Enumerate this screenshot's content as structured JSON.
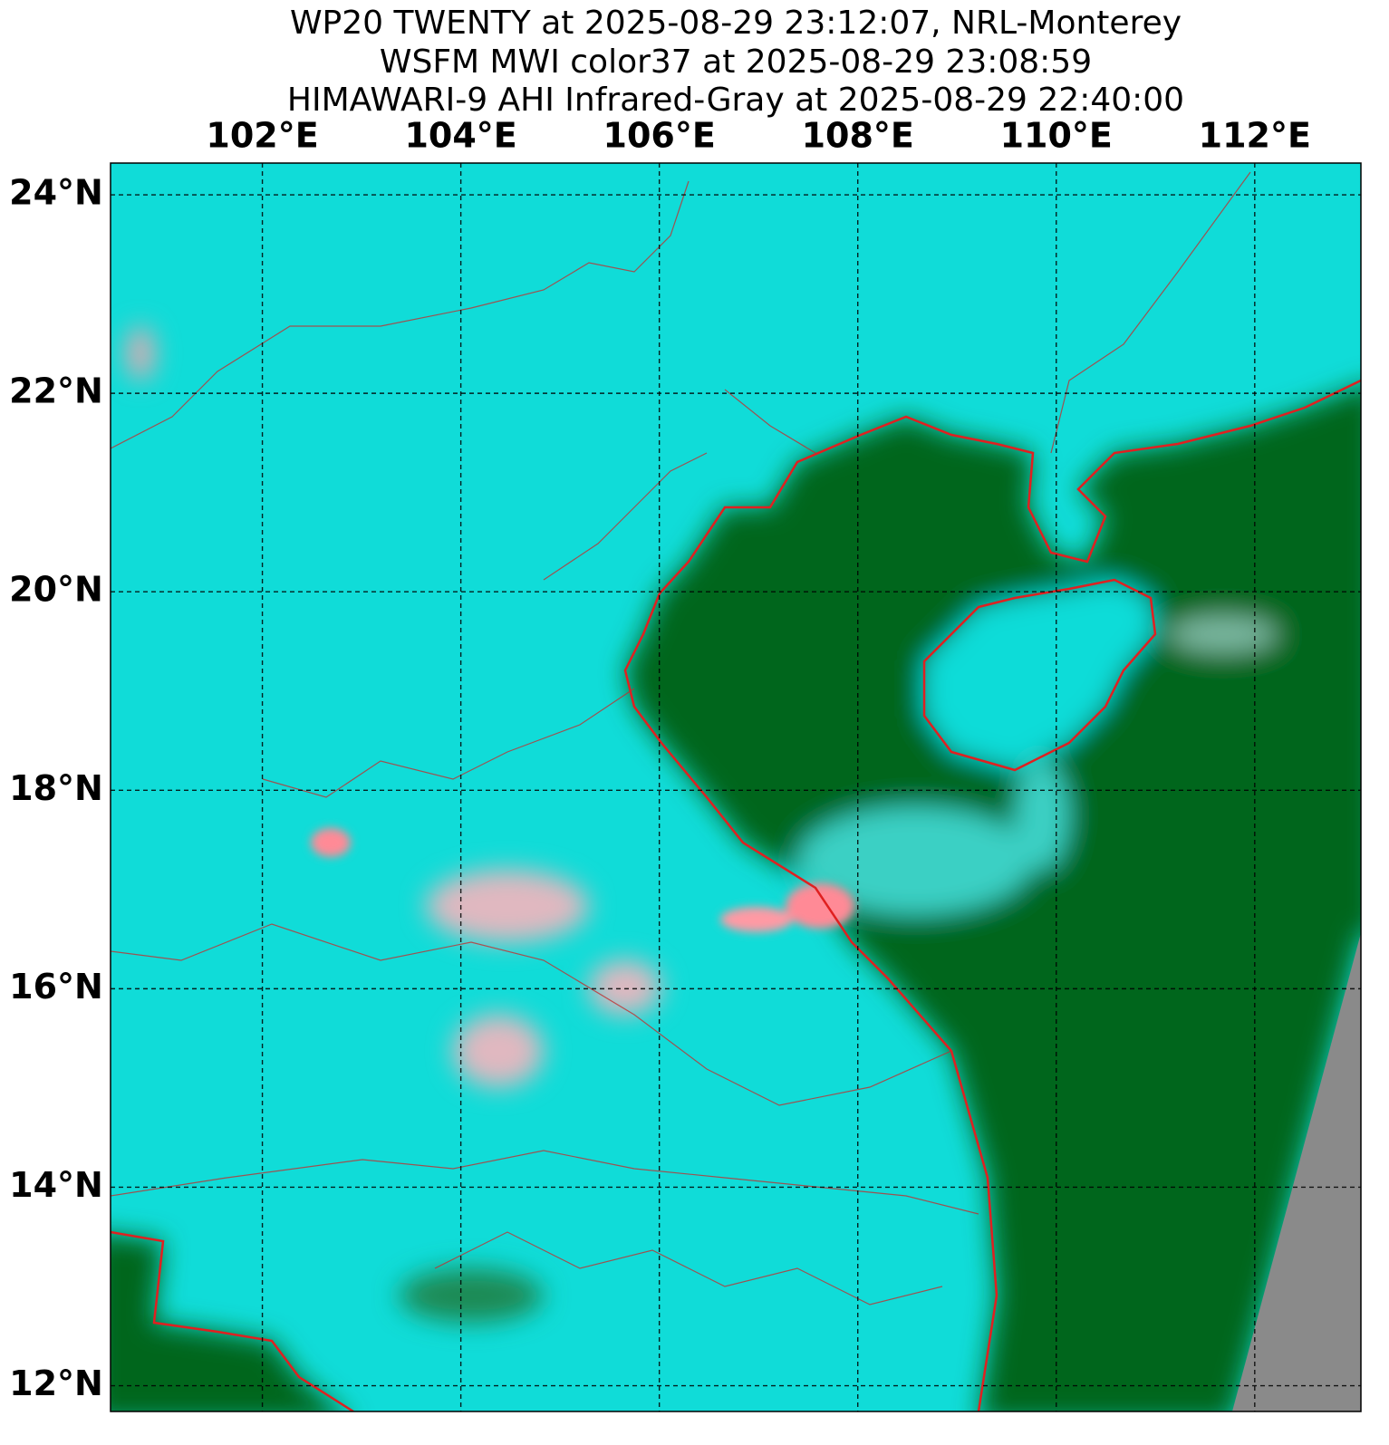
{
  "title": [
    "WP20 TWENTY at 2025-08-29 23:12:07, NRL-Monterey",
    "WSFM MWI color37 at 2025-08-29 23:08:59",
    "HIMAWARI-9 AHI Infrared-Gray at 2025-08-29 22:40:00"
  ],
  "map": {
    "xlim": [
      100.47,
      113.07
    ],
    "ylim": [
      11.74,
      24.32
    ],
    "xticks": [
      {
        "value": 102,
        "label": "102°E"
      },
      {
        "value": 104,
        "label": "104°E"
      },
      {
        "value": 106,
        "label": "106°E"
      },
      {
        "value": 108,
        "label": "108°E"
      },
      {
        "value": 110,
        "label": "110°E"
      },
      {
        "value": 112,
        "label": "112°E"
      }
    ],
    "yticks": [
      {
        "value": 12,
        "label": "12°N"
      },
      {
        "value": 14,
        "label": "14°N"
      },
      {
        "value": 16,
        "label": "16°N"
      },
      {
        "value": 18,
        "label": "18°N"
      },
      {
        "value": 20,
        "label": "20°N"
      },
      {
        "value": 22,
        "label": "22°N"
      },
      {
        "value": 24,
        "label": "24°N"
      }
    ]
  }
}
